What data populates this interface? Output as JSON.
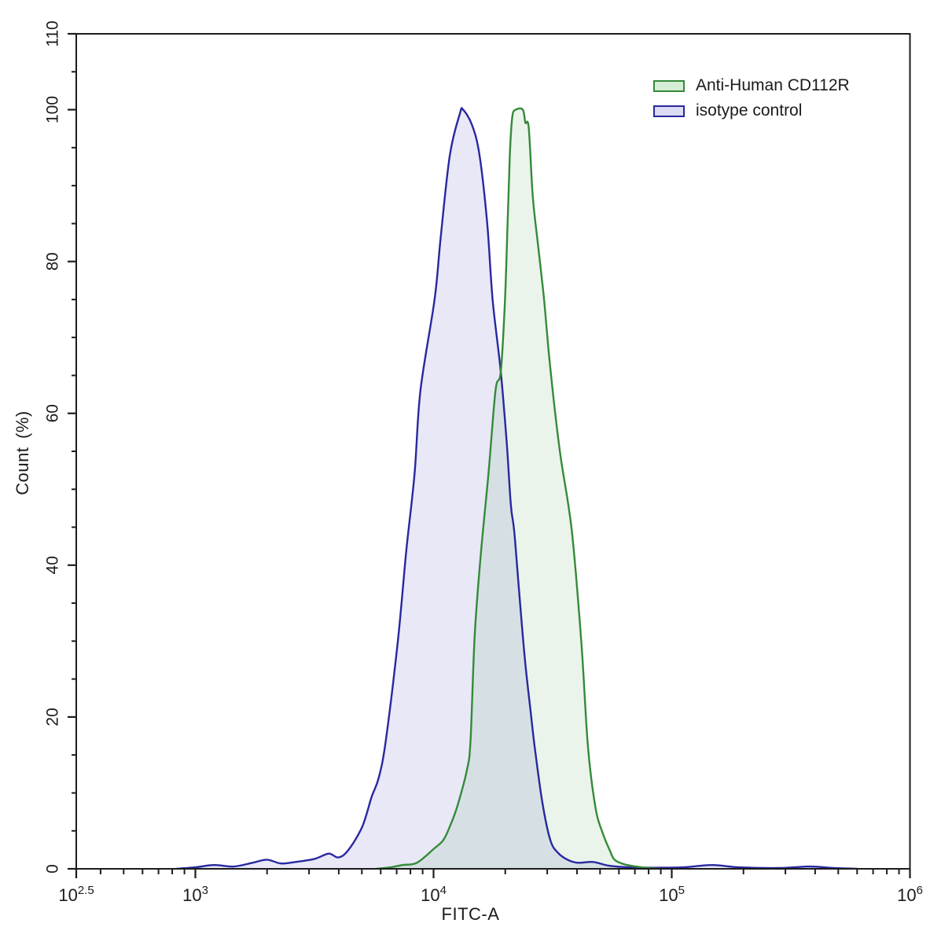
{
  "figure": {
    "background": "#ffffff",
    "axis_color": "#1c1c1c",
    "text_color": "#1b1b1b"
  },
  "chart_data": {
    "type": "area",
    "subtype": "flow-cytometry-histogram-overlay",
    "title": "",
    "xlabel": "FITC-A",
    "ylabel": "Count (%)",
    "x_scale": "log10",
    "xlim_log10": [
      2.5,
      6
    ],
    "ylim": [
      0,
      110
    ],
    "grid": false,
    "x_major_ticks": [
      {
        "log10": 2.5,
        "base": "10",
        "exp": "2.5"
      },
      {
        "log10": 3,
        "base": "10",
        "exp": "3"
      },
      {
        "log10": 4,
        "base": "10",
        "exp": "4"
      },
      {
        "log10": 5,
        "base": "10",
        "exp": "5"
      },
      {
        "log10": 6,
        "base": "10",
        "exp": "6"
      }
    ],
    "y_major_ticks": [
      0,
      20,
      40,
      60,
      80,
      100,
      110
    ],
    "y_minor_tick_step": 5,
    "legend": {
      "position": "top-right-inside",
      "entries": [
        {
          "label": "Anti-Human CD112R",
          "line_color": "#358a39",
          "swatch_fill": "#d6eed6"
        },
        {
          "label": "isotype control",
          "line_color": "#2828a0",
          "swatch_fill": "#dcdcf4"
        }
      ]
    },
    "series": [
      {
        "name": "isotype control",
        "line_color": "#2828a0",
        "fill_color": "rgba(95,95,200,0.14)",
        "peak": {
          "x": 13300,
          "percent": 100
        },
        "points": [
          [
            830,
            0
          ],
          [
            1000,
            0.2
          ],
          [
            1200,
            0.5
          ],
          [
            1450,
            0.3
          ],
          [
            1740,
            0.8
          ],
          [
            2000,
            1.2
          ],
          [
            2290,
            0.7
          ],
          [
            2630,
            0.9
          ],
          [
            3160,
            1.3
          ],
          [
            3630,
            2.0
          ],
          [
            3980,
            1.5
          ],
          [
            4370,
            2.4
          ],
          [
            5010,
            5.5
          ],
          [
            5500,
            9.5
          ],
          [
            5890,
            12
          ],
          [
            6310,
            17
          ],
          [
            7080,
            30
          ],
          [
            7690,
            42
          ],
          [
            8320,
            52
          ],
          [
            8810,
            63
          ],
          [
            10100,
            75
          ],
          [
            10700,
            83
          ],
          [
            11700,
            94
          ],
          [
            12900,
            99.5
          ],
          [
            13300,
            100
          ],
          [
            14500,
            98
          ],
          [
            15600,
            94
          ],
          [
            16800,
            85
          ],
          [
            17700,
            75
          ],
          [
            19150,
            65.5
          ],
          [
            20300,
            56
          ],
          [
            21100,
            48
          ],
          [
            21800,
            44.5
          ],
          [
            22800,
            37
          ],
          [
            24200,
            27.5
          ],
          [
            25500,
            21
          ],
          [
            26600,
            16
          ],
          [
            28600,
            8.8
          ],
          [
            30900,
            3.8
          ],
          [
            33300,
            2.1
          ],
          [
            36500,
            1.2
          ],
          [
            40300,
            0.8
          ],
          [
            46800,
            0.9
          ],
          [
            54600,
            0.4
          ],
          [
            66100,
            0.2
          ],
          [
            89100,
            0.15
          ],
          [
            112000,
            0.2
          ],
          [
            148000,
            0.5
          ],
          [
            191000,
            0.2
          ],
          [
            282000,
            0.1
          ],
          [
            380000,
            0.3
          ],
          [
            479000,
            0.1
          ],
          [
            603000,
            0
          ]
        ]
      },
      {
        "name": "Anti-Human CD112R",
        "line_color": "#358a39",
        "fill_color": "rgba(105,180,110,0.14)",
        "peak": {
          "x": 22500,
          "percent": 100
        },
        "points": [
          [
            5750,
            0
          ],
          [
            6610,
            0.2
          ],
          [
            7410,
            0.5
          ],
          [
            8510,
            0.8
          ],
          [
            10000,
            2.6
          ],
          [
            11000,
            3.8
          ],
          [
            11750,
            5.7
          ],
          [
            12600,
            8.3
          ],
          [
            13800,
            13
          ],
          [
            14300,
            17
          ],
          [
            14900,
            31
          ],
          [
            15850,
            42
          ],
          [
            17000,
            52
          ],
          [
            18200,
            63
          ],
          [
            19150,
            65.5
          ],
          [
            19950,
            75
          ],
          [
            20500,
            86
          ],
          [
            20900,
            94
          ],
          [
            21400,
            99
          ],
          [
            22100,
            100
          ],
          [
            23700,
            100
          ],
          [
            24300,
            98.3
          ],
          [
            25100,
            97.6
          ],
          [
            26100,
            88.6
          ],
          [
            27500,
            82
          ],
          [
            29100,
            75
          ],
          [
            30900,
            66
          ],
          [
            33900,
            55
          ],
          [
            38000,
            44.7
          ],
          [
            41700,
            30
          ],
          [
            44500,
            16
          ],
          [
            47900,
            8
          ],
          [
            51300,
            4.7
          ],
          [
            55000,
            2.4
          ],
          [
            57500,
            1.2
          ],
          [
            63100,
            0.6
          ],
          [
            70800,
            0.3
          ],
          [
            79400,
            0.1
          ],
          [
            89100,
            0
          ]
        ]
      }
    ]
  }
}
